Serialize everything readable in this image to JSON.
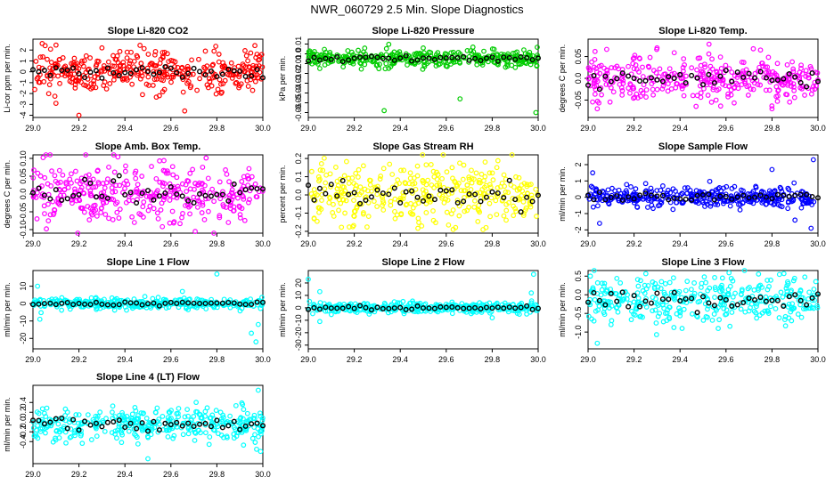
{
  "figure_title": "NWR_060729  2.5 Min. Slope Diagnostics",
  "x_ticks": [
    "29.0",
    "29.2",
    "29.4",
    "29.6",
    "29.8",
    "30.0"
  ],
  "chart_data": [
    {
      "type": "scatter",
      "title": "Slope Li-820 CO2",
      "ylabel": "Li-cor ppm per min.",
      "xlim": [
        29.0,
        30.0
      ],
      "ylim": [
        -4.2,
        3.0
      ],
      "yticks": [
        "-4",
        "-3",
        "-2",
        "-1",
        "0",
        "1",
        "2"
      ],
      "ytick_values": [
        -4,
        -3,
        -2,
        -1,
        0,
        1,
        2
      ],
      "color": "#ff0000",
      "base": 0.0,
      "spread": 0.9,
      "outliers": [
        [
          29.04,
          2.6
        ],
        [
          29.1,
          -2.9
        ],
        [
          29.2,
          -4.0
        ],
        [
          29.3,
          2.2
        ],
        [
          29.55,
          -2.2
        ],
        [
          29.66,
          -3.6
        ],
        [
          29.75,
          1.9
        ]
      ]
    },
    {
      "type": "scatter",
      "title": "Slope Li-820 Pressure",
      "ylabel": "kPa per min.",
      "xlim": [
        29.0,
        30.0
      ],
      "ylim": [
        -0.065,
        0.015
      ],
      "yticks": [
        "-0.06",
        "-0.05",
        "-0.04",
        "-0.03",
        "-0.02",
        "-0.01",
        "0.0",
        "0.01"
      ],
      "ytick_values": [
        -0.06,
        -0.05,
        -0.04,
        -0.03,
        -0.02,
        -0.01,
        0.0,
        0.01
      ],
      "color": "#00cc00",
      "base": -0.005,
      "spread": 0.004,
      "outliers": [
        [
          29.33,
          -0.058
        ],
        [
          29.66,
          -0.046
        ],
        [
          29.99,
          -0.06
        ],
        [
          29.05,
          -0.015
        ],
        [
          29.5,
          0.006
        ]
      ]
    },
    {
      "type": "scatter",
      "title": "Slope Li-820 Temp.",
      "ylabel": "degrees C per min.",
      "xlim": [
        29.0,
        30.0
      ],
      "ylim": [
        -0.09,
        0.09
      ],
      "yticks": [
        "-0.05",
        "0.0",
        "0.05"
      ],
      "ytick_values": [
        -0.05,
        0.0,
        0.05
      ],
      "color": "#ff00ff",
      "base": 0.0,
      "spread": 0.025,
      "outliers": [
        [
          29.3,
          0.07
        ],
        [
          29.75,
          0.065
        ],
        [
          29.04,
          -0.07
        ],
        [
          29.8,
          -0.07
        ]
      ]
    },
    {
      "type": "scatter",
      "title": "Slope Amb. Box Temp.",
      "ylabel": "degrees C per min.",
      "xlim": [
        29.0,
        30.0
      ],
      "ylim": [
        -0.11,
        0.11
      ],
      "yticks": [
        "-0.10",
        "-0.05",
        "0.0",
        "0.05",
        "0.10"
      ],
      "ytick_values": [
        -0.1,
        -0.05,
        0.0,
        0.05,
        0.1
      ],
      "color": "#ff00ff",
      "base": 0.0,
      "spread": 0.045,
      "outliers": []
    },
    {
      "type": "scatter",
      "title": "Slope Gas Stream RH",
      "ylabel": "percent per min.",
      "xlim": [
        29.0,
        30.0
      ],
      "ylim": [
        -0.21,
        0.22
      ],
      "yticks": [
        "-0.2",
        "-0.1",
        "0.0",
        "0.1",
        "0.2"
      ],
      "ytick_values": [
        -0.2,
        -0.1,
        0.0,
        0.1,
        0.2
      ],
      "color": "#ffff00",
      "base": 0.0,
      "spread": 0.08,
      "outliers": []
    },
    {
      "type": "scatter",
      "title": "Slope Sample Flow",
      "ylabel": "ml/min per min.",
      "xlim": [
        29.0,
        30.0
      ],
      "ylim": [
        -2.2,
        2.6
      ],
      "yticks": [
        "-2",
        "-1",
        "0",
        "1",
        "2"
      ],
      "ytick_values": [
        -2,
        -1,
        0,
        1,
        2
      ],
      "color": "#0000ff",
      "base": 0.0,
      "spread": 0.3,
      "outliers": [
        [
          29.02,
          1.5
        ],
        [
          29.98,
          2.3
        ],
        [
          29.97,
          -1.9
        ],
        [
          29.8,
          1.7
        ],
        [
          29.05,
          -1.6
        ],
        [
          29.9,
          -1.4
        ]
      ]
    },
    {
      "type": "scatter",
      "title": "Slope Line 1 Flow",
      "ylabel": "ml/min per min.",
      "xlim": [
        29.0,
        30.0
      ],
      "ylim": [
        -26.0,
        19.0
      ],
      "yticks": [
        "-20",
        "-10",
        "0",
        "10"
      ],
      "ytick_values": [
        -20,
        -10,
        0,
        10
      ],
      "color": "#00ffff",
      "base": 0.0,
      "spread": 1.5,
      "outliers": [
        [
          29.02,
          10.0
        ],
        [
          29.03,
          -9.0
        ],
        [
          29.8,
          17.0
        ],
        [
          29.97,
          -22.0
        ],
        [
          29.95,
          -17.0
        ],
        [
          29.98,
          -12.0
        ],
        [
          29.65,
          7.0
        ]
      ]
    },
    {
      "type": "scatter",
      "title": "Slope Line 2 Flow",
      "ylabel": "ml/min per min.",
      "xlim": [
        29.0,
        30.0
      ],
      "ylim": [
        -33.0,
        30.0
      ],
      "yticks": [
        "-30",
        "-20",
        "-10",
        "0",
        "10",
        "20"
      ],
      "ytick_values": [
        -30,
        -20,
        -10,
        0,
        10,
        20
      ],
      "color": "#00ffff",
      "base": 0.0,
      "spread": 2.0,
      "outliers": [
        [
          29.0,
          23.0
        ],
        [
          29.05,
          13.0
        ],
        [
          29.05,
          -11.0
        ],
        [
          29.98,
          27.0
        ],
        [
          29.97,
          12.0
        ],
        [
          29.95,
          -5.0
        ],
        [
          29.8,
          -8.0
        ]
      ]
    },
    {
      "type": "scatter",
      "title": "Slope Line 3 Flow",
      "ylabel": "ml/min per min.",
      "xlim": [
        29.0,
        30.0
      ],
      "ylim": [
        -1.45,
        0.65
      ],
      "yticks": [
        "-1.0",
        "-0.5",
        "0.0",
        "0.5"
      ],
      "ytick_values": [
        -1.0,
        -0.5,
        0.0,
        0.5
      ],
      "color": "#00ffff",
      "base": -0.15,
      "spread": 0.3,
      "outliers": [
        [
          29.04,
          -1.3
        ],
        [
          29.01,
          0.5
        ],
        [
          29.1,
          -0.8
        ]
      ]
    },
    {
      "type": "scatter",
      "title": "Slope Line 4 (LT) Flow",
      "ylabel": "ml/min per min.",
      "xlim": [
        29.0,
        30.0
      ],
      "ylim": [
        -0.85,
        0.75
      ],
      "yticks": [
        "-0.4",
        "-0.2",
        "0.0",
        "0.2",
        "0.4"
      ],
      "ytick_values": [
        -0.4,
        -0.2,
        0.0,
        0.2,
        0.4
      ],
      "color": "#00ffff",
      "base": -0.05,
      "spread": 0.17,
      "outliers": [
        [
          29.98,
          0.65
        ],
        [
          29.5,
          -0.75
        ],
        [
          29.99,
          -0.6
        ]
      ]
    }
  ]
}
